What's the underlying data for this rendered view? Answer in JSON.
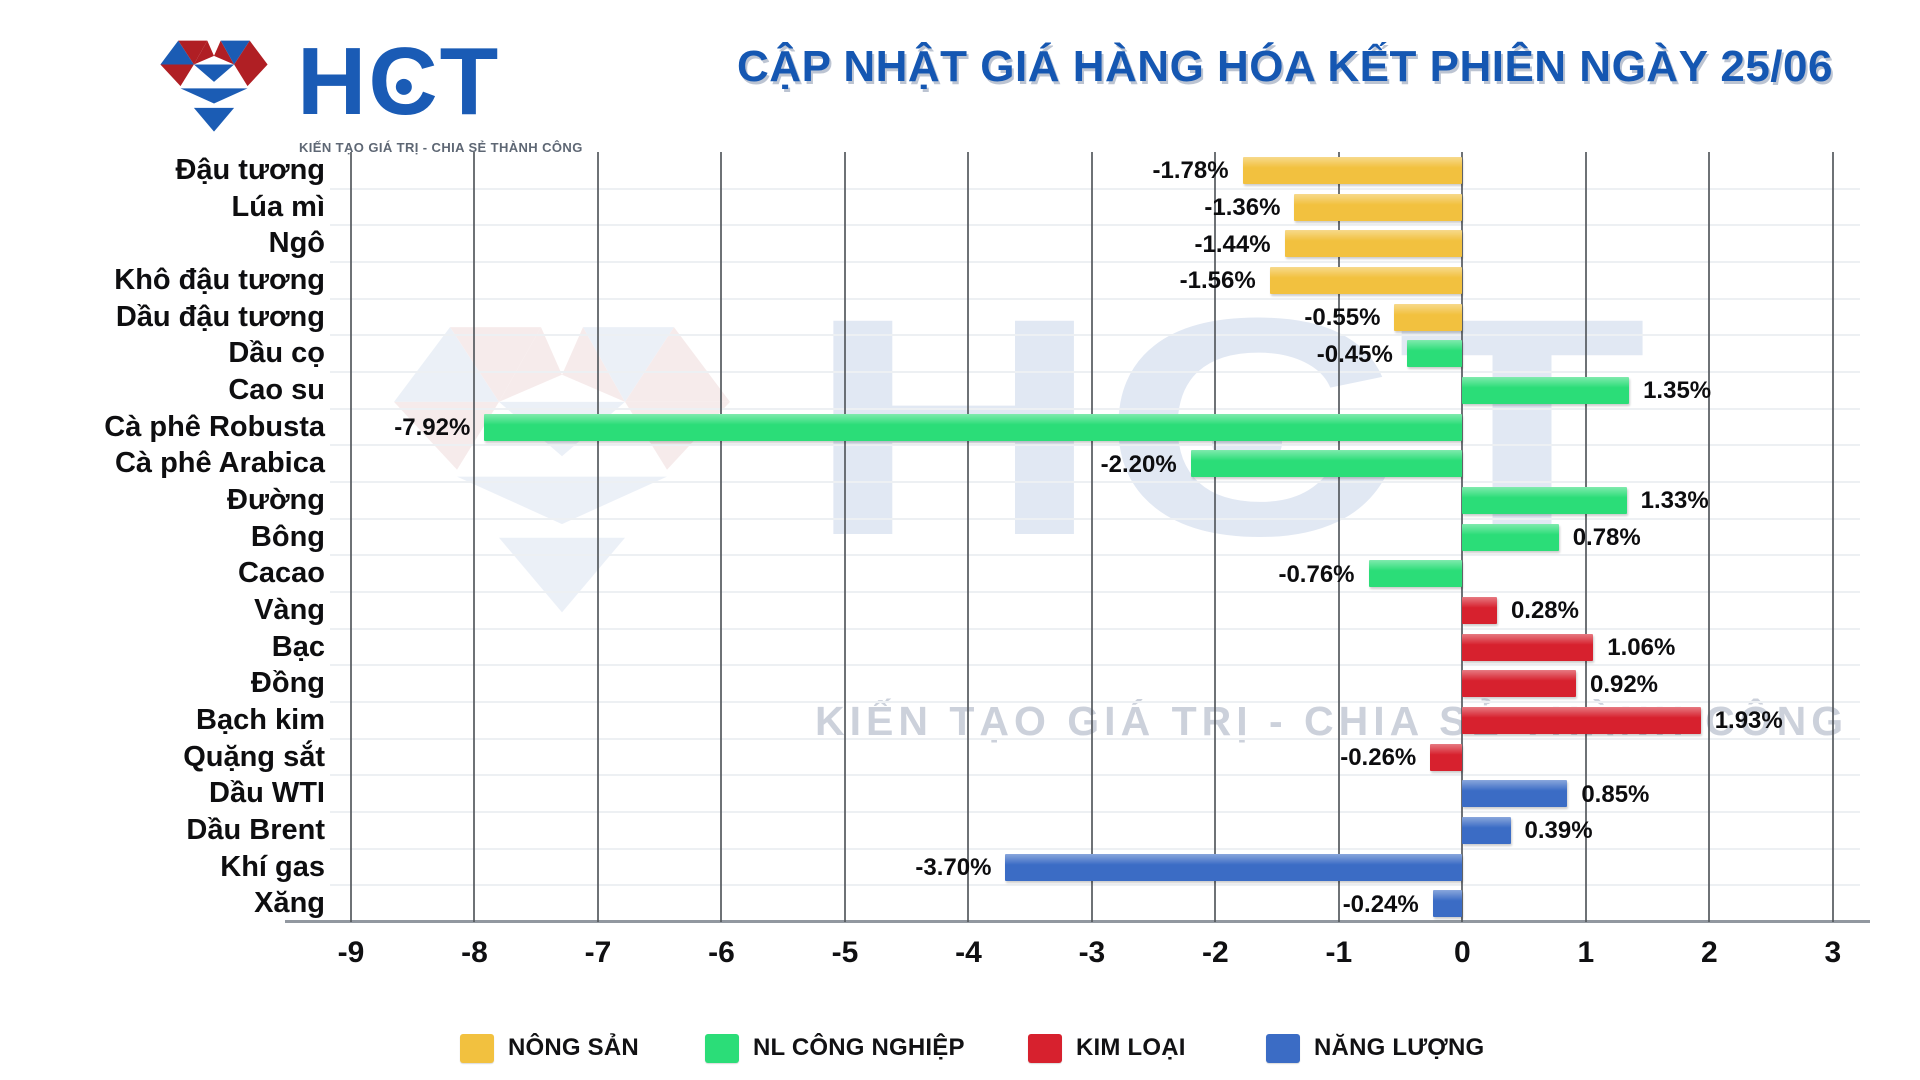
{
  "header": {
    "logo_text": "HCT",
    "logo_tagline": "KIẾN TẠO GIÁ TRỊ - CHIA SẺ THÀNH CÔNG",
    "title": "CẬP NHẬT GIÁ HÀNG HÓA KẾT PHIÊN NGÀY 25/06"
  },
  "watermark": {
    "text": "HCT",
    "tagline": "KIẾN TẠO GIÁ TRỊ - CHIA SẺ THÀNH CÔNG"
  },
  "chart_data": {
    "type": "bar",
    "orientation": "horizontal",
    "title": "CẬP NHẬT GIÁ HÀNG HÓA KẾT PHIÊN NGÀY 25/06",
    "xlim": [
      -9.17,
      3.22
    ],
    "x_ticks": [
      -9,
      -8,
      -7,
      -6,
      -5,
      -4,
      -3,
      -2,
      -1,
      0,
      1,
      2,
      3
    ],
    "grid": true,
    "legend_position": "bottom",
    "groups": [
      {
        "name": "NÔNG SẢN",
        "color": "#F2C13F"
      },
      {
        "name": "NL CÔNG NGHIỆP",
        "color": "#2BDD78"
      },
      {
        "name": "KIM LOẠI",
        "color": "#D7212E"
      },
      {
        "name": "NĂNG LƯỢNG",
        "color": "#3B6CC5"
      }
    ],
    "items": [
      {
        "label": "Đậu tương",
        "value": -1.78,
        "display": "-1.78%",
        "group": 0
      },
      {
        "label": "Lúa mì",
        "value": -1.36,
        "display": "-1.36%",
        "group": 0
      },
      {
        "label": "Ngô",
        "value": -1.44,
        "display": "-1.44%",
        "group": 0
      },
      {
        "label": "Khô đậu tương",
        "value": -1.56,
        "display": "-1.56%",
        "group": 0
      },
      {
        "label": "Dầu đậu tương",
        "value": -0.55,
        "display": "-0.55%",
        "group": 0
      },
      {
        "label": "Dầu cọ",
        "value": -0.45,
        "display": "-0.45%",
        "group": 1
      },
      {
        "label": "Cao su",
        "value": 1.35,
        "display": "1.35%",
        "group": 1
      },
      {
        "label": "Cà phê Robusta",
        "value": -7.92,
        "display": "-7.92%",
        "group": 1
      },
      {
        "label": "Cà phê Arabica",
        "value": -2.2,
        "display": "-2.20%",
        "group": 1
      },
      {
        "label": "Đường",
        "value": 1.33,
        "display": "1.33%",
        "group": 1
      },
      {
        "label": "Bông",
        "value": 0.78,
        "display": "0.78%",
        "group": 1
      },
      {
        "label": "Cacao",
        "value": -0.76,
        "display": "-0.76%",
        "group": 1
      },
      {
        "label": "Vàng",
        "value": 0.28,
        "display": "0.28%",
        "group": 2
      },
      {
        "label": "Bạc",
        "value": 1.06,
        "display": "1.06%",
        "group": 2
      },
      {
        "label": "Đồng",
        "value": 0.92,
        "display": "0.92%",
        "group": 2
      },
      {
        "label": "Bạch kim",
        "value": 1.93,
        "display": "1.93%",
        "group": 2
      },
      {
        "label": "Quặng sắt",
        "value": -0.26,
        "display": "-0.26%",
        "group": 2
      },
      {
        "label": "Dầu WTI",
        "value": 0.85,
        "display": "0.85%",
        "group": 3
      },
      {
        "label": "Dầu Brent",
        "value": 0.39,
        "display": "0.39%",
        "group": 3
      },
      {
        "label": "Khí gas",
        "value": -3.7,
        "display": "-3.70%",
        "group": 3
      },
      {
        "label": "Xăng",
        "value": -0.24,
        "display": "-0.24%",
        "group": 3
      }
    ]
  }
}
